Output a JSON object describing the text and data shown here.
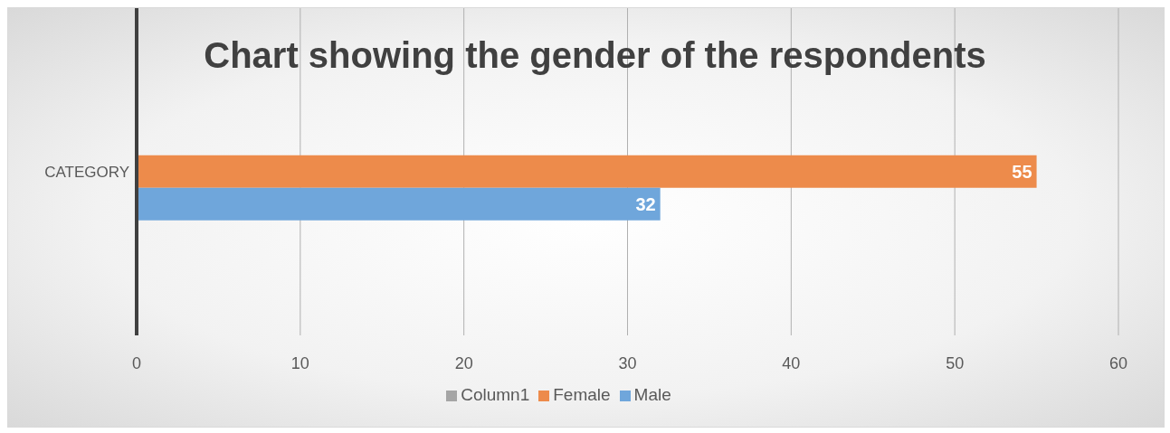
{
  "chart_data": {
    "type": "bar",
    "orientation": "horizontal",
    "title": "Chart showing the gender of the respondents",
    "categories": [
      "CATEGORY"
    ],
    "series": [
      {
        "name": "Column1",
        "color": "#a5a5a5",
        "values": [
          null
        ]
      },
      {
        "name": "Female",
        "color": "#ed8b4b",
        "values": [
          55
        ]
      },
      {
        "name": "Male",
        "color": "#6fa6db",
        "values": [
          32
        ]
      }
    ],
    "xlim": [
      0,
      60
    ],
    "xticks": [
      0,
      10,
      20,
      30,
      40,
      50,
      60
    ],
    "grid": "x",
    "legend": "bottom",
    "data_labels": true
  }
}
